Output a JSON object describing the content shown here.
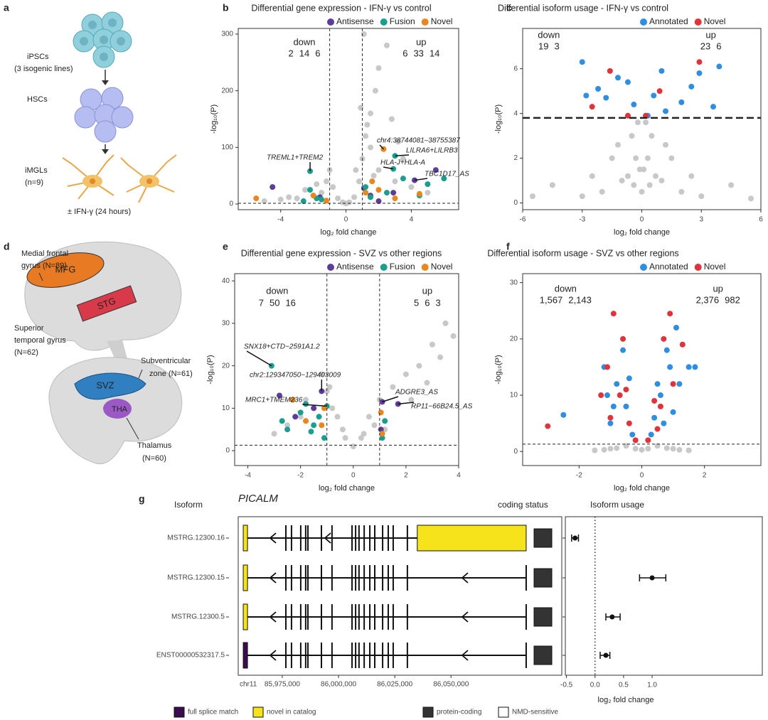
{
  "figure": {
    "panel_labels": [
      "a",
      "b",
      "c",
      "d",
      "e",
      "f",
      "g"
    ],
    "a": {
      "ipscs": "iPSCs",
      "ipscs_note": "(3 isogenic lines)",
      "hscs": "HSCs",
      "imgls": "iMGLs",
      "imgls_note": "(n=9)",
      "treatment": "± IFN-γ (24 hours)"
    },
    "d": {
      "mfg_lines": [
        "Medial frontal",
        "gyrus (N=89)"
      ],
      "mfg": "MFG",
      "stg": "STG",
      "stg_lines": [
        "Superior",
        "temporal gyrus",
        "(N=62)"
      ],
      "svz_lines": [
        "Subventricular",
        "zone (N=61)"
      ],
      "svz": "SVZ",
      "tha": "THA",
      "tha_lines": [
        "Thalamus",
        "(N=60)"
      ]
    }
  },
  "chart_data": [
    {
      "type": "scatter",
      "title": "Differential gene expression - IFN-γ vs control",
      "xlabel": "log₂ fold change",
      "ylabel": "-log₁₀(P)",
      "xlim": [
        -6.6,
        6.9
      ],
      "ylim": [
        -10,
        310
      ],
      "xticks": [
        -4,
        0,
        4
      ],
      "yticks": [
        0,
        100,
        200,
        300
      ],
      "vlines": [
        -1,
        1
      ],
      "hlines": [
        1.3
      ],
      "background": {
        "color": "#c8c8c8",
        "x": [
          -1.5,
          -2,
          -3,
          -4,
          -5,
          -1.2,
          -0.8,
          -0.5,
          0.5,
          0.8,
          1,
          1.2,
          1.5,
          1.8,
          2,
          2.5,
          1.5,
          2,
          3,
          3.5,
          4,
          5,
          0.2,
          -0.2,
          0,
          0.6,
          1.3,
          -1,
          -2.5,
          -3.5,
          1.1,
          2.8,
          3.2,
          -1.8,
          0.9,
          1.7
        ],
        "values": [
          20,
          15,
          10,
          8,
          5,
          40,
          30,
          10,
          12,
          40,
          80,
          120,
          160,
          200,
          240,
          280,
          100,
          60,
          40,
          80,
          30,
          20,
          3,
          3,
          1,
          60,
          140,
          60,
          25,
          12,
          300,
          150,
          110,
          35,
          170,
          50
        ]
      },
      "series": [
        {
          "name": "Antisense",
          "color": "#5e3c99",
          "x": [
            4.2,
            5.5,
            1.5,
            2.0,
            -4.5,
            2.9,
            -1.6,
            1.1
          ],
          "values": [
            42,
            60,
            15,
            5,
            30,
            20,
            12,
            28
          ]
        },
        {
          "name": "Fusion",
          "color": "#1b9e8f",
          "x": [
            -2.2,
            -1.8,
            -2.2,
            3.0,
            2.9,
            5.0,
            6.0,
            1.5,
            2.5,
            -1.5,
            -2.6,
            3.5,
            1.2,
            4.5
          ],
          "values": [
            25,
            10,
            58,
            85,
            62,
            35,
            45,
            12,
            20,
            8,
            5,
            45,
            30,
            15
          ]
        },
        {
          "name": "Novel",
          "color": "#e8871e",
          "x": [
            2.3,
            -5.5,
            -2.0,
            1.2,
            2.0,
            4.5,
            3.0,
            -1.2,
            1.6
          ],
          "values": [
            97,
            10,
            15,
            20,
            25,
            18,
            10,
            6,
            40
          ]
        }
      ],
      "counts": {
        "down": {
          "label": "down",
          "values": [
            2,
            14,
            6
          ]
        },
        "up": {
          "label": "up",
          "values": [
            6,
            33,
            14
          ]
        }
      },
      "annotations": [
        {
          "text": "TREML1+TREM2",
          "x": -2.2,
          "y": 58
        },
        {
          "text": "chr4:38744081–38755387",
          "x": 2.3,
          "y": 97
        },
        {
          "text": "LILRA6+LILRB3",
          "x": 3.0,
          "y": 85
        },
        {
          "text": "HLA-J+HLA-A",
          "x": 2.9,
          "y": 62
        },
        {
          "text": "TBC1D17_AS",
          "x": 4.2,
          "y": 42
        }
      ]
    },
    {
      "type": "scatter",
      "title": "Differential isoform usage - IFN-γ vs control",
      "xlabel": "log₂ fold change",
      "ylabel": "-log₁₀(P)",
      "xlim": [
        -6,
        6
      ],
      "ylim": [
        -0.3,
        7.8
      ],
      "xticks": [
        -6,
        -3,
        0,
        3,
        6
      ],
      "yticks": [
        0,
        2,
        4,
        6
      ],
      "vlines": [],
      "hlines": [
        3.8
      ],
      "background": {
        "color": "#c8c8c8",
        "x": [
          0,
          0.3,
          -0.3,
          0.5,
          -0.5,
          1,
          -1,
          2,
          -2,
          3,
          -3,
          -4.5,
          4.5,
          0.2,
          -0.2,
          1.5,
          -1.5,
          0.7,
          -0.7,
          -5.5,
          5.5,
          0.1,
          -0.1,
          2.5,
          -2.5,
          0.4,
          -0.4,
          1.2,
          -1.2
        ],
        "values": [
          0.5,
          2,
          2,
          3,
          3,
          1,
          1,
          0.5,
          0.5,
          0.3,
          0.3,
          0.8,
          0.8,
          3.6,
          3.6,
          2,
          2,
          1.2,
          1.2,
          0.3,
          0.2,
          1.5,
          1.5,
          1.2,
          1.2,
          0.8,
          0.8,
          2.6,
          2.6
        ]
      },
      "series": [
        {
          "name": "Annotated",
          "color": "#2f8ee0",
          "x": [
            -3,
            -2.8,
            -1.8,
            -1.2,
            -0.7,
            -0.4,
            0.3,
            1,
            1.2,
            2,
            2.5,
            2.9,
            3.6,
            3.9,
            -2.2,
            0.6
          ],
          "values": [
            6.3,
            4.8,
            4.7,
            5.6,
            5.4,
            4.4,
            3.9,
            5.9,
            4.1,
            4.5,
            5.2,
            5.8,
            4.3,
            6.1,
            5.1,
            4.8
          ]
        },
        {
          "name": "Novel",
          "color": "#e0343c",
          "x": [
            -1.6,
            -0.7,
            0.9,
            0.2,
            2.9,
            -2.5
          ],
          "values": [
            5.9,
            3.9,
            5.0,
            3.9,
            6.3,
            4.3
          ]
        }
      ],
      "counts": {
        "down": {
          "label": "down",
          "values": [
            19,
            3
          ]
        },
        "up": {
          "label": "up",
          "values": [
            23,
            6
          ]
        }
      },
      "annotations": []
    },
    {
      "type": "scatter",
      "title": "Differential gene expression - SVZ vs other regions",
      "xlabel": "log₂ fold change",
      "ylabel": "-log₁₀(P)",
      "xlim": [
        -4.5,
        4
      ],
      "ylim": [
        -3.5,
        41.7
      ],
      "xticks": [
        -4,
        -2,
        0,
        2,
        4
      ],
      "yticks": [
        0,
        10,
        20,
        30,
        40
      ],
      "vlines": [
        -1,
        1
      ],
      "hlines": [
        1.3
      ],
      "background": {
        "color": "#c8c8c8",
        "x": [
          0,
          0.3,
          -0.3,
          -0.6,
          0.6,
          -1,
          1,
          -1.5,
          1.5,
          2,
          2.5,
          3,
          3.5,
          3.8,
          -2,
          -2.5,
          -3,
          -1.2,
          -0.9,
          2.2,
          -0.4,
          0.4,
          -1.8,
          1.2,
          0.8,
          -0.8,
          2.8,
          3.3
        ],
        "values": [
          1,
          3,
          3,
          8,
          8,
          14,
          12,
          10,
          15,
          18,
          20,
          25,
          30,
          27,
          8,
          6,
          4,
          18,
          15,
          12,
          5,
          4,
          12,
          5,
          6,
          10,
          16,
          22
        ]
      },
      "series": [
        {
          "name": "Antisense",
          "color": "#5e3c99",
          "x": [
            -2.8,
            -1.2,
            1.1,
            1.7,
            -1.5,
            1.05,
            -2.2
          ],
          "values": [
            13,
            14,
            11.5,
            11,
            10,
            5,
            8
          ]
        },
        {
          "name": "Fusion",
          "color": "#1b9e8f",
          "x": [
            -3.1,
            -2,
            -1.5,
            -2.5,
            -1.1,
            -1.8,
            -1.3,
            1.2,
            1.1,
            -2.7,
            -1.6,
            -1.0
          ],
          "values": [
            20,
            9,
            6,
            5,
            3,
            11,
            8,
            7,
            3,
            7,
            4.5,
            10.5
          ]
        },
        {
          "name": "Novel",
          "color": "#e8871e",
          "x": [
            -1.2,
            -1.8,
            -1.1,
            1.05,
            1.1,
            -2.3
          ],
          "values": [
            6,
            7,
            10,
            9,
            4,
            12
          ]
        }
      ],
      "counts": {
        "down": {
          "label": "down",
          "values": [
            7,
            50,
            16
          ]
        },
        "up": {
          "label": "up",
          "values": [
            5,
            6,
            3
          ]
        }
      },
      "annotations": [
        {
          "text": "SNX18+CTD−2591A1.2",
          "x": -3.1,
          "y": 20
        },
        {
          "text": "chr2:129347050−129403009",
          "x": -1.2,
          "y": 14
        },
        {
          "text": "MRC1+TMEM236",
          "x": -1.0,
          "y": 10.5
        },
        {
          "text": "ADGRE3_AS",
          "x": 1.1,
          "y": 11.5
        },
        {
          "text": "RP11−66B24.5_AS",
          "x": 1.7,
          "y": 11
        }
      ]
    },
    {
      "type": "scatter",
      "title": "Differential isoform usage - SVZ vs other regions",
      "xlabel": "log₂ fold change",
      "ylabel": "-log₁₀(P)",
      "xlim": [
        -3.8,
        3.8
      ],
      "ylim": [
        -2.5,
        31.6
      ],
      "xticks": [
        -2,
        0,
        2
      ],
      "yticks": [
        0,
        10,
        20,
        30
      ],
      "vlines": [],
      "hlines": [
        1.3
      ],
      "background": {
        "color": "#c8c8c8",
        "x": [
          0,
          0.5,
          -0.5,
          1,
          -1,
          1.5,
          -1.5,
          0.2,
          -0.2,
          0.8,
          -0.8,
          1.2,
          -1.2
        ],
        "values": [
          0.3,
          1,
          1,
          0.5,
          0.5,
          0.2,
          0.2,
          0.5,
          0.5,
          0.6,
          0.6,
          0.3,
          0.3
        ]
      },
      "series": [
        {
          "name": "Annotated",
          "color": "#2f8ee0",
          "x": [
            -2.5,
            -1.2,
            -0.8,
            -0.5,
            -1,
            -0.3,
            0.3,
            0.6,
            0.9,
            1.1,
            1.2,
            0.7,
            1.5,
            1.7,
            -0.6,
            0.8,
            0.4,
            -0.9,
            -1.1,
            1.0,
            0.5,
            -0.4
          ],
          "values": [
            6.5,
            15,
            12,
            8,
            5,
            3,
            3,
            10,
            15,
            22,
            12,
            5,
            15,
            15,
            18,
            18,
            6,
            8,
            10,
            7,
            12,
            13
          ]
        },
        {
          "name": "Novel",
          "color": "#e0343c",
          "x": [
            -3,
            -0.9,
            -1.1,
            -0.6,
            -0.4,
            -1.3,
            0.5,
            0.9,
            0.7,
            1.0,
            0.6,
            -0.7,
            0.2,
            -0.2,
            1.3,
            -1.0,
            0.4,
            -0.5
          ],
          "values": [
            4.5,
            24.5,
            15,
            20,
            5,
            10,
            4,
            24.5,
            20,
            12,
            8,
            10,
            2,
            2,
            19,
            6,
            9,
            11
          ]
        }
      ],
      "counts": {
        "down": {
          "label": "down",
          "values": [
            {
              "value": 1567,
              "label": "1,567"
            },
            {
              "value": 2143,
              "label": "2,143"
            }
          ]
        },
        "up": {
          "label": "up",
          "values": [
            {
              "value": 2376,
              "label": "2,376"
            },
            982
          ]
        }
      },
      "annotations": []
    },
    {
      "type": "forest",
      "title": "Isoform usage",
      "xlabel": "log₂ fold change",
      "xlim": [
        -0.52,
        2.93
      ],
      "xticks": [
        -0.5,
        {
          "value": 0,
          "label": "0.0"
        },
        0.5,
        {
          "value": 1,
          "label": "1.0"
        }
      ],
      "vline": 0,
      "categories": [
        "MSTRG.12300.16",
        "MSTRG.12300.15",
        "MSTRG.12300.5",
        "ENST00000532317.5"
      ],
      "values": [
        -0.35,
        1.0,
        0.3,
        0.19
      ],
      "ci_low": [
        -0.41,
        0.78,
        0.19,
        0.09
      ],
      "ci_high": [
        -0.29,
        1.24,
        0.44,
        0.26
      ]
    }
  ],
  "gene_panel": {
    "gene": "PICALM",
    "isoform_header": "Isoform",
    "coding_header": "coding status",
    "chrom": "chr11",
    "xlim": [
      85957000,
      86085000
    ],
    "xticks": [
      {
        "value": 85975000,
        "label": "85,975,000"
      },
      {
        "value": 86000000,
        "label": "86,000,000"
      },
      {
        "value": 86025000,
        "label": "86,025,000"
      },
      {
        "value": 86050000,
        "label": "86,050,000"
      }
    ],
    "exons": [
      85958600,
      85976600,
      85979100,
      85983200,
      85985400,
      85986400,
      85992400,
      85997100,
      86006000,
      86007600,
      86009100,
      86011400,
      86013900,
      86016100,
      86019600,
      86022100,
      86024300,
      86030600,
      86083400
    ],
    "isoforms": [
      {
        "category": 1,
        "coding": 0,
        "cds": [
          86035000,
          86083400
        ]
      },
      {
        "category": 1,
        "coding": 0
      },
      {
        "category": 1,
        "coding": 0
      },
      {
        "category": 0,
        "coding": 0
      }
    ],
    "categories_legend": [
      {
        "label": "full splice match",
        "color": "#3b0c4f"
      },
      {
        "label": "novel in catalog",
        "color": "#f7e31b"
      }
    ],
    "coding_legend": [
      {
        "label": "protein-coding",
        "color": "#333333"
      },
      {
        "label": "NMD-sensitive",
        "color": "#ffffff"
      }
    ]
  }
}
